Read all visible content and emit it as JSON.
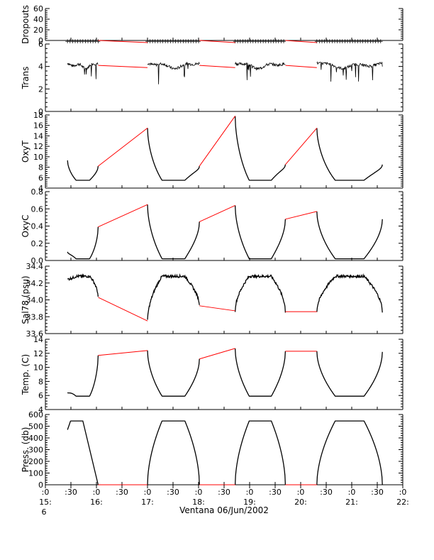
{
  "xaxis": {
    "ticks": [
      {
        "t": 0,
        "label": ":0",
        "line2": "15:",
        "line3": "6"
      },
      {
        "t": 30,
        "label": ":30"
      },
      {
        "t": 60,
        "label": ":0",
        "line2": "16:"
      },
      {
        "t": 90,
        "label": ":30"
      },
      {
        "t": 120,
        "label": ":0",
        "line2": "17:"
      },
      {
        "t": 150,
        "label": ":30"
      },
      {
        "t": 180,
        "label": ":0",
        "line2": "18:"
      },
      {
        "t": 210,
        "label": ":30"
      },
      {
        "t": 240,
        "label": ":0",
        "line2": "19:"
      },
      {
        "t": 270,
        "label": ":30"
      },
      {
        "t": 300,
        "label": ":0",
        "line2": "20:"
      },
      {
        "t": 330,
        "label": ":30"
      },
      {
        "t": 360,
        "label": ":0",
        "line2": "21:"
      },
      {
        "t": 390,
        "label": ":30"
      },
      {
        "t": 420,
        "label": ":0",
        "line2": "22:"
      }
    ],
    "range": [
      0,
      420
    ],
    "xlabel": "Ventana 06/Jun/2002"
  },
  "chart_data": [
    {
      "type": "scatter",
      "ylabel": "Dropouts",
      "ylim": [
        0,
        60
      ],
      "yticks": [
        0,
        20,
        40,
        60
      ],
      "ticklabels": [
        "0",
        "20",
        "40",
        "60"
      ],
      "profile": "dropouts",
      "range": [
        0,
        0
      ],
      "x": [
        26,
        396
      ],
      "y": [
        0,
        0
      ]
    },
    {
      "type": "line",
      "ylabel": "Trans",
      "ylim": [
        0,
        6
      ],
      "yticks": [
        0,
        2,
        4,
        6
      ],
      "ticklabels": [
        "0",
        "2",
        "4",
        "6"
      ],
      "profile": "trans",
      "range": [
        4.3,
        4.3
      ],
      "x": [
        26,
        396
      ],
      "y": [
        4.2,
        4.3
      ]
    },
    {
      "type": "line",
      "ylabel": "OxyT",
      "ylim": [
        4,
        18
      ],
      "yticks": [
        4,
        6,
        8,
        10,
        12,
        14,
        16,
        18
      ],
      "ticklabels": [
        "4",
        "6",
        "8",
        "10",
        "12",
        "14",
        "16",
        "18"
      ],
      "profile": "depth",
      "range": [
        5.5,
        5.5
      ],
      "x": [
        26,
        396
      ],
      "y": [
        9.3,
        8.5
      ],
      "gap_ends": [
        [
          8.2,
          15.5
        ],
        [
          8.2,
          17.8
        ],
        [
          8.5,
          15.5
        ]
      ]
    },
    {
      "type": "line",
      "ylabel": "OxyC",
      "ylim": [
        0.0,
        0.8
      ],
      "yticks": [
        0.0,
        0.2,
        0.4,
        0.6,
        0.8
      ],
      "ticklabels": [
        "0.0",
        "0.2",
        "0.4",
        "0.6",
        "0.8"
      ],
      "profile": "depth",
      "range": [
        0.02,
        0.02
      ],
      "x": [
        26,
        396
      ],
      "y": [
        0.1,
        0.48
      ],
      "gap_ends": [
        [
          0.39,
          0.65
        ],
        [
          0.45,
          0.64
        ],
        [
          0.48,
          0.57
        ]
      ]
    },
    {
      "type": "line",
      "ylabel": "Sal78 (psu)",
      "ylim": [
        33.6,
        34.4
      ],
      "yticks": [
        33.6,
        33.8,
        34.0,
        34.2,
        34.4
      ],
      "ticklabels": [
        "33.6",
        "33.8",
        "34.0",
        "34.2",
        "34.4"
      ],
      "profile": "depth",
      "range": [
        34.28,
        34.28
      ],
      "x": [
        26,
        396
      ],
      "y": [
        34.24,
        33.86
      ],
      "gap_ends": [
        [
          34.03,
          33.75
        ],
        [
          33.93,
          33.87
        ],
        [
          33.86,
          33.86
        ]
      ]
    },
    {
      "type": "line",
      "ylabel": "Temp. (C)",
      "ylim": [
        4,
        14
      ],
      "yticks": [
        4,
        6,
        8,
        10,
        12,
        14
      ],
      "ticklabels": [
        "4",
        "6",
        "8",
        "10",
        "12",
        "14"
      ],
      "profile": "depth",
      "range": [
        5.9,
        5.9
      ],
      "x": [
        26,
        396
      ],
      "y": [
        6.4,
        12.2
      ],
      "gap_ends": [
        [
          11.7,
          12.4
        ],
        [
          11.2,
          12.7
        ],
        [
          12.3,
          12.3
        ]
      ]
    },
    {
      "type": "line",
      "ylabel": "Press. (db)",
      "ylim": [
        0,
        600
      ],
      "yticks": [
        0,
        100,
        200,
        300,
        400,
        500,
        600
      ],
      "ticklabels": [
        "0",
        "100",
        "200",
        "300",
        "400",
        "500",
        "600"
      ],
      "profile": "pressure",
      "range": [
        545,
        545
      ],
      "x": [
        26,
        396
      ],
      "y": [
        470,
        0
      ],
      "gap_ends": [
        [
          0,
          0
        ],
        [
          0,
          0
        ],
        [
          0,
          0
        ]
      ]
    }
  ],
  "profiles": {
    "segments": [
      [
        26,
        62
      ],
      [
        120,
        181
      ],
      [
        223,
        282
      ],
      [
        319,
        396
      ]
    ],
    "gaps": [
      [
        62,
        120
      ],
      [
        181,
        223
      ],
      [
        282,
        319
      ]
    ],
    "colors": {
      "data": "#000000",
      "gap": "#ff0000",
      "axis": "#000000"
    }
  }
}
